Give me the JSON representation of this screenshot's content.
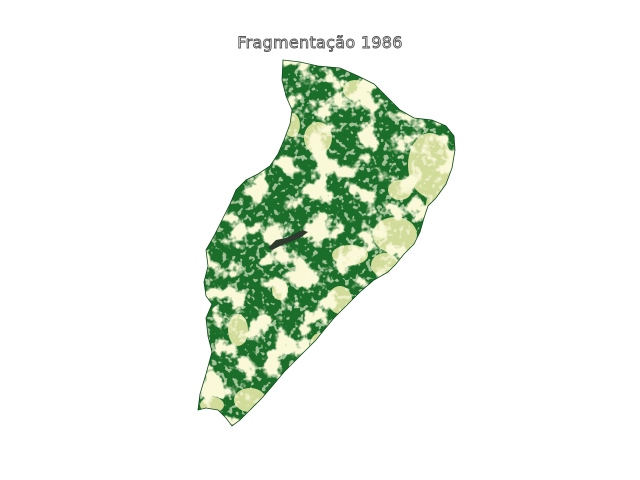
{
  "map": {
    "title": "Fragmentação 1986",
    "colors": {
      "forest": "#1b6e2a",
      "forest_dark": "#0f5a1e",
      "fragment": "#f1efae",
      "fragment_light": "#f7f4c4",
      "water": "#2e3a2e"
    }
  }
}
